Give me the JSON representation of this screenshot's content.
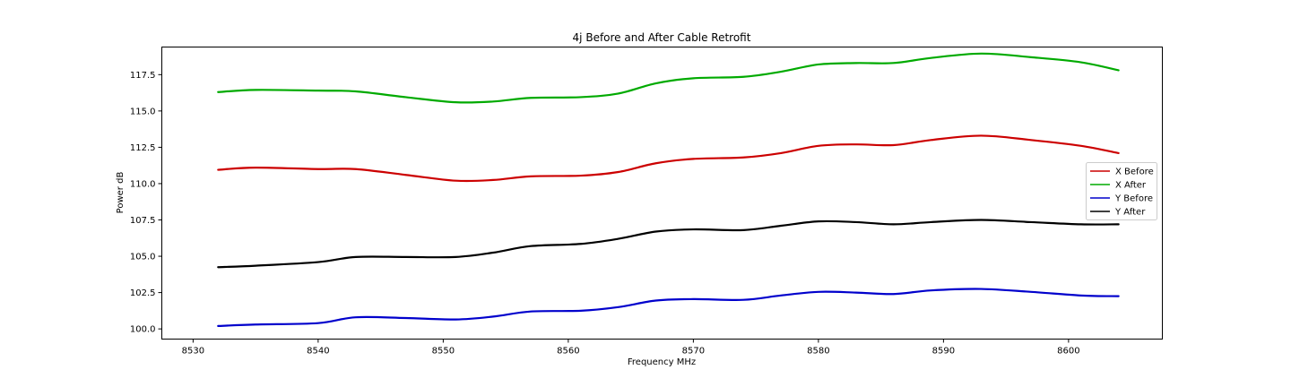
{
  "chart_data": {
    "type": "line",
    "title": "4j Before and After Cable Retrofit",
    "xlabel": "Frequency MHz",
    "ylabel": "Power dB",
    "xlim": [
      8527.5,
      8607.5
    ],
    "ylim": [
      99.3,
      119.4
    ],
    "x_ticks": [
      8530,
      8540,
      8550,
      8560,
      8570,
      8580,
      8590,
      8600
    ],
    "x_tick_labels": [
      "8530",
      "8540",
      "8550",
      "8560",
      "8570",
      "8580",
      "8590",
      "8600"
    ],
    "y_ticks": [
      100.0,
      102.5,
      105.0,
      107.5,
      110.0,
      112.5,
      115.0,
      117.5
    ],
    "y_tick_labels": [
      "100.0",
      "102.5",
      "105.0",
      "107.5",
      "110.0",
      "112.5",
      "115.0",
      "117.5"
    ],
    "grid": false,
    "legend_position": "center-right",
    "x": [
      8532,
      8535,
      8540,
      8543,
      8547,
      8551,
      8554,
      8557,
      8561,
      8564,
      8567,
      8570,
      8574,
      8577,
      8580,
      8583,
      8586,
      8589,
      8593,
      8597,
      8601,
      8604
    ],
    "series": [
      {
        "name": "X Before",
        "color": "#cc0000",
        "values": [
          110.95,
          111.1,
          111.0,
          111.0,
          110.6,
          110.2,
          110.25,
          110.5,
          110.55,
          110.8,
          111.4,
          111.7,
          111.8,
          112.1,
          112.6,
          112.7,
          112.65,
          113.0,
          113.3,
          113.0,
          112.6,
          112.1
        ]
      },
      {
        "name": "X After",
        "color": "#00aa00",
        "values": [
          116.3,
          116.45,
          116.4,
          116.35,
          115.95,
          115.6,
          115.65,
          115.9,
          115.95,
          116.2,
          116.9,
          117.25,
          117.35,
          117.7,
          118.2,
          118.3,
          118.3,
          118.65,
          118.95,
          118.7,
          118.35,
          117.8
        ]
      },
      {
        "name": "Y Before",
        "color": "#0000cc",
        "values": [
          100.2,
          100.3,
          100.4,
          100.8,
          100.75,
          100.65,
          100.85,
          101.2,
          101.25,
          101.5,
          101.95,
          102.05,
          102.0,
          102.3,
          102.55,
          102.5,
          102.4,
          102.65,
          102.75,
          102.55,
          102.3,
          102.25
        ]
      },
      {
        "name": "Y After",
        "color": "#000000",
        "values": [
          104.25,
          104.35,
          104.6,
          104.95,
          104.95,
          104.95,
          105.25,
          105.7,
          105.85,
          106.2,
          106.7,
          106.85,
          106.8,
          107.1,
          107.4,
          107.35,
          107.2,
          107.35,
          107.5,
          107.35,
          107.2,
          107.2
        ]
      }
    ]
  }
}
